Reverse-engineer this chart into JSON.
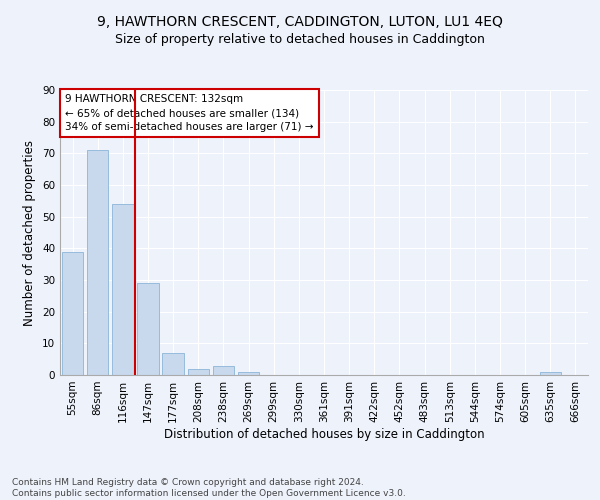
{
  "title": "9, HAWTHORN CRESCENT, CADDINGTON, LUTON, LU1 4EQ",
  "subtitle": "Size of property relative to detached houses in Caddington",
  "xlabel": "Distribution of detached houses by size in Caddington",
  "ylabel": "Number of detached properties",
  "categories": [
    "55sqm",
    "86sqm",
    "116sqm",
    "147sqm",
    "177sqm",
    "208sqm",
    "238sqm",
    "269sqm",
    "299sqm",
    "330sqm",
    "361sqm",
    "391sqm",
    "422sqm",
    "452sqm",
    "483sqm",
    "513sqm",
    "544sqm",
    "574sqm",
    "605sqm",
    "635sqm",
    "666sqm"
  ],
  "values": [
    39,
    71,
    54,
    29,
    7,
    2,
    3,
    1,
    0,
    0,
    0,
    0,
    0,
    0,
    0,
    0,
    0,
    0,
    0,
    1,
    0
  ],
  "bar_color": "#c8d9ee",
  "bar_edge_color": "#8ab4d8",
  "vline_x": 2.5,
  "vline_color": "#cc0000",
  "annotation_text": "9 HAWTHORN CRESCENT: 132sqm\n← 65% of detached houses are smaller (134)\n34% of semi-detached houses are larger (71) →",
  "annotation_box_color": "#ffffff",
  "annotation_box_edge": "#cc0000",
  "ylim": [
    0,
    90
  ],
  "yticks": [
    0,
    10,
    20,
    30,
    40,
    50,
    60,
    70,
    80,
    90
  ],
  "footer": "Contains HM Land Registry data © Crown copyright and database right 2024.\nContains public sector information licensed under the Open Government Licence v3.0.",
  "title_fontsize": 10,
  "subtitle_fontsize": 9,
  "axis_label_fontsize": 8.5,
  "tick_fontsize": 7.5,
  "annotation_fontsize": 7.5,
  "footer_fontsize": 6.5,
  "bg_color": "#eef2fb",
  "grid_color": "#ffffff"
}
